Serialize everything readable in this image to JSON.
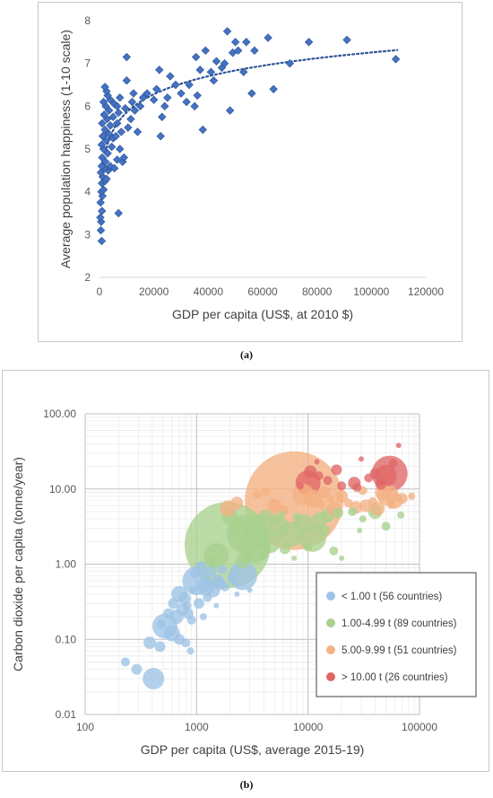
{
  "captions": {
    "a": "(a)",
    "b": "(b)"
  },
  "chart_data": [
    {
      "type": "scatter",
      "xlabel": "GDP per capita (US$, at 2010 $)",
      "ylabel": "Average population happiness (1-10 scale)",
      "xlim": [
        0,
        120000
      ],
      "ylim": [
        2,
        8
      ],
      "xticks": [
        0,
        20000,
        40000,
        60000,
        80000,
        100000,
        120000
      ],
      "yticks": [
        2,
        3,
        4,
        5,
        6,
        7,
        8
      ],
      "marker_color": "#4472c4",
      "trendline": {
        "style": "dotted",
        "type": "logarithmic",
        "color": "#2f5597"
      },
      "points": [
        [
          800,
          2.85
        ],
        [
          500,
          3.1
        ],
        [
          600,
          3.3
        ],
        [
          300,
          3.4
        ],
        [
          900,
          3.55
        ],
        [
          400,
          3.75
        ],
        [
          1100,
          3.9
        ],
        [
          700,
          4.0
        ],
        [
          1500,
          4.05
        ],
        [
          900,
          4.2
        ],
        [
          2000,
          4.25
        ],
        [
          1200,
          4.35
        ],
        [
          500,
          4.45
        ],
        [
          2600,
          4.3
        ],
        [
          3200,
          4.5
        ],
        [
          1800,
          4.55
        ],
        [
          800,
          4.6
        ],
        [
          4000,
          4.6
        ],
        [
          5500,
          4.55
        ],
        [
          2200,
          4.7
        ],
        [
          1000,
          4.8
        ],
        [
          6500,
          4.75
        ],
        [
          3000,
          4.9
        ],
        [
          1500,
          5.0
        ],
        [
          4500,
          5.05
        ],
        [
          800,
          5.1
        ],
        [
          7500,
          5.0
        ],
        [
          2500,
          5.2
        ],
        [
          5000,
          5.25
        ],
        [
          1200,
          5.3
        ],
        [
          3500,
          5.35
        ],
        [
          6000,
          5.3
        ],
        [
          2000,
          5.45
        ],
        [
          8000,
          5.4
        ],
        [
          4000,
          5.55
        ],
        [
          1000,
          5.6
        ],
        [
          6500,
          5.6
        ],
        [
          2800,
          5.7
        ],
        [
          5000,
          5.75
        ],
        [
          1700,
          5.8
        ],
        [
          7000,
          5.85
        ],
        [
          3500,
          5.9
        ],
        [
          9500,
          5.95
        ],
        [
          2300,
          6.0
        ],
        [
          5500,
          6.05
        ],
        [
          4000,
          6.15
        ],
        [
          1500,
          6.1
        ],
        [
          7500,
          6.2
        ],
        [
          3000,
          6.25
        ],
        [
          6500,
          6.0
        ],
        [
          2600,
          6.35
        ],
        [
          8500,
          4.7
        ],
        [
          9000,
          4.8
        ],
        [
          7000,
          3.5
        ],
        [
          10500,
          5.5
        ],
        [
          11500,
          5.7
        ],
        [
          12000,
          6.1
        ],
        [
          13000,
          5.9
        ],
        [
          14000,
          5.4
        ],
        [
          15000,
          6.0
        ],
        [
          16000,
          6.2
        ],
        [
          17500,
          6.3
        ],
        [
          10000,
          6.6
        ],
        [
          12500,
          6.3
        ],
        [
          20000,
          6.15
        ],
        [
          21000,
          6.4
        ],
        [
          22500,
          5.3
        ],
        [
          23000,
          5.75
        ],
        [
          24000,
          6.0
        ],
        [
          25000,
          6.2
        ],
        [
          26000,
          6.7
        ],
        [
          28000,
          6.5
        ],
        [
          30000,
          6.3
        ],
        [
          32000,
          6.1
        ],
        [
          33000,
          6.5
        ],
        [
          35000,
          6.0
        ],
        [
          35500,
          7.15
        ],
        [
          36000,
          6.25
        ],
        [
          37000,
          6.85
        ],
        [
          38000,
          5.45
        ],
        [
          39000,
          7.3
        ],
        [
          41000,
          6.8
        ],
        [
          42000,
          6.6
        ],
        [
          43000,
          7.05
        ],
        [
          45000,
          6.9
        ],
        [
          46000,
          7.0
        ],
        [
          47000,
          7.75
        ],
        [
          48000,
          5.9
        ],
        [
          49000,
          7.25
        ],
        [
          50000,
          7.5
        ],
        [
          51000,
          7.3
        ],
        [
          53000,
          6.8
        ],
        [
          54000,
          7.5
        ],
        [
          56000,
          6.3
        ],
        [
          57000,
          7.3
        ],
        [
          62000,
          7.6
        ],
        [
          64000,
          6.4
        ],
        [
          70000,
          7.0
        ],
        [
          77000,
          7.5
        ],
        [
          91000,
          7.55
        ],
        [
          109000,
          7.1
        ],
        [
          10000,
          7.15
        ],
        [
          22000,
          6.85
        ],
        [
          2000,
          6.45
        ]
      ]
    },
    {
      "type": "scatter",
      "subtype": "bubble",
      "xlabel": "GDP per capita (US$, average 2015-19)",
      "ylabel": "Carbon dioxide per capita (tonne/year)",
      "xscale": "log",
      "yscale": "log",
      "xlim": [
        100,
        100000
      ],
      "ylim": [
        0.01,
        100
      ],
      "xtick_labels": [
        "100",
        "1000",
        "10000",
        "100000"
      ],
      "ytick_labels": [
        "0.01",
        "0.10",
        "1.00",
        "10.00",
        "100.00"
      ],
      "legend_position": "right",
      "series": [
        {
          "name": "< 1.00 t (56 countries)",
          "color": "#9dc3e6",
          "points": [
            [
              230,
              0.05,
              5
            ],
            [
              290,
              0.04,
              6
            ],
            [
              410,
              0.03,
              12
            ],
            [
              380,
              0.09,
              7
            ],
            [
              470,
              0.08,
              6
            ],
            [
              520,
              0.15,
              14
            ],
            [
              600,
              0.12,
              9
            ],
            [
              700,
              0.1,
              6
            ],
            [
              800,
              0.09,
              5
            ],
            [
              880,
              0.07,
              4
            ],
            [
              660,
              0.2,
              8
            ],
            [
              750,
              0.25,
              7
            ],
            [
              840,
              0.22,
              6
            ],
            [
              900,
              0.18,
              5
            ],
            [
              620,
              0.3,
              6
            ],
            [
              700,
              0.4,
              9
            ],
            [
              780,
              0.35,
              7
            ],
            [
              820,
              0.28,
              5
            ],
            [
              1000,
              0.6,
              16
            ],
            [
              1200,
              0.5,
              10
            ],
            [
              1400,
              0.45,
              8
            ],
            [
              1600,
              0.55,
              7
            ],
            [
              1050,
              0.3,
              6
            ],
            [
              1250,
              0.36,
              5
            ],
            [
              1550,
              0.6,
              7
            ],
            [
              1800,
              0.5,
              5
            ],
            [
              2100,
              0.65,
              6
            ],
            [
              2600,
              0.7,
              16
            ],
            [
              1100,
              0.9,
              7
            ],
            [
              1350,
              0.8,
              6
            ],
            [
              960,
              0.75,
              5
            ],
            [
              1700,
              0.85,
              5
            ],
            [
              3000,
              0.45,
              3
            ],
            [
              480,
              0.16,
              5
            ],
            [
              560,
              0.22,
              6
            ],
            [
              920,
              0.45,
              4
            ],
            [
              1150,
              0.2,
              4
            ],
            [
              1500,
              0.28,
              3
            ],
            [
              2300,
              0.4,
              3
            ]
          ]
        },
        {
          "name": "1.00-4.99 t (89 countries)",
          "color": "#a9d18e",
          "points": [
            [
              1900,
              1.8,
              48
            ],
            [
              2800,
              2.5,
              22
            ],
            [
              3300,
              1.7,
              18
            ],
            [
              1500,
              1.3,
              14
            ],
            [
              3500,
              3.0,
              16
            ],
            [
              4500,
              2.0,
              13
            ],
            [
              5500,
              3.2,
              11
            ],
            [
              7000,
              2.5,
              14
            ],
            [
              9000,
              3.5,
              10
            ],
            [
              11000,
              2.2,
              15
            ],
            [
              12500,
              3.8,
              9
            ],
            [
              15000,
              4.5,
              8
            ],
            [
              17000,
              1.5,
              5
            ],
            [
              18500,
              4.8,
              6
            ],
            [
              25000,
              5.0,
              5
            ],
            [
              31000,
              4.0,
              4
            ],
            [
              40000,
              5.0,
              8
            ],
            [
              50000,
              3.2,
              5
            ],
            [
              2600,
              1.1,
              8
            ],
            [
              1350,
              1.1,
              6
            ],
            [
              2000,
              4.2,
              9
            ],
            [
              2400,
              3.6,
              6
            ],
            [
              3900,
              1.3,
              5
            ],
            [
              6200,
              1.6,
              6
            ],
            [
              8000,
              4.2,
              5
            ],
            [
              14000,
              2.8,
              6
            ],
            [
              4200,
              4.4,
              7
            ],
            [
              3000,
              1.4,
              5
            ],
            [
              5000,
              4.0,
              6
            ],
            [
              2200,
              2.5,
              5
            ],
            [
              10000,
              1.7,
              5
            ],
            [
              3700,
              2.2,
              5
            ],
            [
              68000,
              4.5,
              4
            ],
            [
              29000,
              2.8,
              3
            ],
            [
              20000,
              1.2,
              3
            ],
            [
              7500,
              1.2,
              3
            ],
            [
              5800,
              4.6,
              4
            ]
          ]
        },
        {
          "name": "5.00-9.99 t (51 countries)",
          "color": "#f4b183",
          "points": [
            [
              7500,
              7.0,
              55
            ],
            [
              1900,
              5.5,
              9
            ],
            [
              2300,
              6.5,
              7
            ],
            [
              5000,
              6.0,
              8
            ],
            [
              9000,
              8.5,
              12
            ],
            [
              11000,
              7.5,
              10
            ],
            [
              14000,
              9.0,
              7
            ],
            [
              17000,
              5.5,
              8
            ],
            [
              20000,
              8.0,
              7
            ],
            [
              27000,
              5.7,
              7
            ],
            [
              33000,
              6.0,
              7
            ],
            [
              42000,
              5.5,
              8
            ],
            [
              47000,
              9.0,
              9
            ],
            [
              52000,
              8.3,
              12
            ],
            [
              60000,
              7.0,
              9
            ],
            [
              70000,
              7.5,
              6
            ],
            [
              85000,
              8.0,
              4
            ],
            [
              31000,
              9.5,
              5
            ],
            [
              23000,
              6.5,
              5
            ],
            [
              3500,
              8.5,
              5
            ],
            [
              6000,
              5.2,
              6
            ],
            [
              4200,
              9.2,
              5
            ],
            [
              13000,
              6.2,
              5
            ],
            [
              38000,
              6.8,
              5
            ],
            [
              56000,
              6.2,
              5
            ],
            [
              16000,
              7.4,
              4
            ]
          ]
        },
        {
          "name": "> 10.00 t (26 countries)",
          "color": "#e06666",
          "points": [
            [
              10000,
              12.0,
              14
            ],
            [
              10500,
              17.0,
              7
            ],
            [
              12500,
              15.0,
              5
            ],
            [
              15000,
              13.0,
              5
            ],
            [
              18000,
              18.0,
              6
            ],
            [
              20000,
              11.0,
              5
            ],
            [
              26000,
              12.0,
              7
            ],
            [
              27500,
              10.5,
              5
            ],
            [
              35000,
              14.0,
              5
            ],
            [
              40000,
              16.0,
              6
            ],
            [
              45000,
              11.5,
              6
            ],
            [
              50000,
              15.0,
              12
            ],
            [
              54000,
              16.0,
              20
            ],
            [
              58000,
              22.0,
              5
            ],
            [
              65000,
              38.0,
              3
            ],
            [
              30000,
              25.0,
              3
            ],
            [
              8500,
              11.0,
              4
            ],
            [
              12000,
              23.0,
              3
            ]
          ]
        }
      ]
    }
  ]
}
